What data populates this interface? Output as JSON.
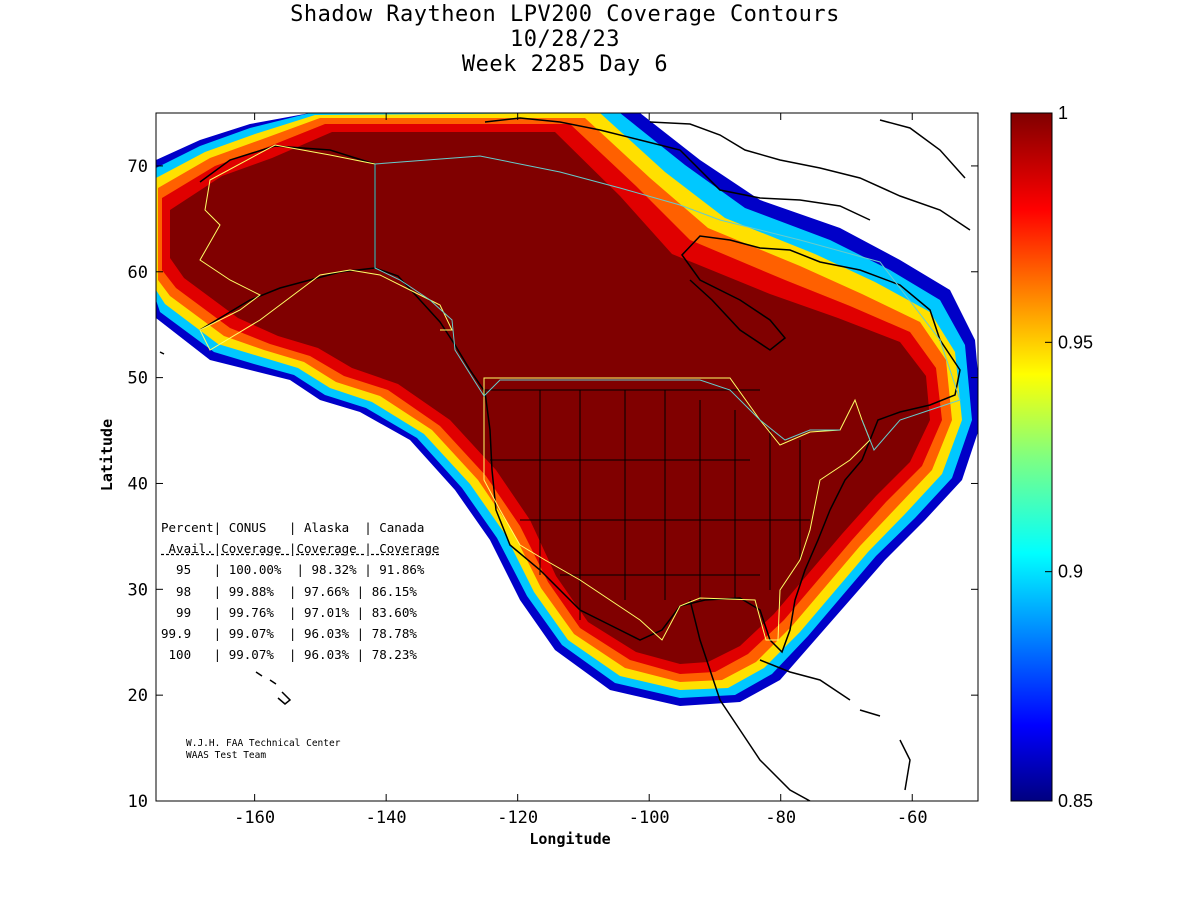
{
  "title": {
    "line1": "Shadow Raytheon LPV200 Coverage Contours",
    "line2": "10/28/23",
    "line3": "Week 2285 Day 6"
  },
  "map": {
    "xlabel": "Longitude",
    "ylabel": "Latitude",
    "xlim": [
      -175,
      -50
    ],
    "ylim": [
      10,
      75
    ],
    "xticks": [
      -160,
      -140,
      -120,
      -100,
      -80,
      -60
    ],
    "yticks": [
      10,
      20,
      30,
      40,
      50,
      60,
      70
    ],
    "xtick_labels": [
      "-160",
      "-140",
      "-120",
      "-100",
      "-80",
      "-60"
    ],
    "ytick_labels": [
      "10",
      "20",
      "30",
      "40",
      "50",
      "60",
      "70"
    ],
    "grid": false
  },
  "colorbar": {
    "min": 0.85,
    "max": 1,
    "tick_values": [
      1,
      0.95,
      0.9,
      0.85
    ],
    "tick_labels": [
      "1",
      "0.95",
      "0.9",
      "0.85"
    ],
    "colormap": "jet"
  },
  "coverage_table": {
    "header1": "Percent| CONUS   | Alaska  | Canada",
    "header2": " Avail.|Coverage |Coverage | Coverage",
    "columns": [
      "Percent Avail.",
      "CONUS Coverage",
      "Alaska Coverage",
      "Canada Coverage"
    ],
    "rows": [
      {
        "percent": "95",
        "conus": "100.00%",
        "alaska": "98.32%",
        "canada": "91.86%",
        "text": "  95   | 100.00%  | 98.32% | 91.86%"
      },
      {
        "percent": "98",
        "conus": "99.88%",
        "alaska": "97.66%",
        "canada": "86.15%",
        "text": "  98   | 99.88%  | 97.66% | 86.15%"
      },
      {
        "percent": "99",
        "conus": "99.76%",
        "alaska": "97.01%",
        "canada": "83.60%",
        "text": "  99   | 99.76%  | 97.01% | 83.60%"
      },
      {
        "percent": "99.9",
        "conus": "99.07%",
        "alaska": "96.03%",
        "canada": "78.78%",
        "text": "99.9   | 99.07%  | 96.03% | 78.78%"
      },
      {
        "percent": "100",
        "conus": "99.07%",
        "alaska": "96.03%",
        "canada": "78.23%",
        "text": " 100   | 99.07%  | 96.03% | 78.23%"
      }
    ]
  },
  "credit": {
    "line1": "W.J.H. FAA Technical Center",
    "line2": "WAAS Test Team"
  },
  "colors": {
    "max_coverage": "#800000",
    "boundary_us_canada": "#ffff66",
    "boundary_canada": "#66cccc",
    "coastline": "#000000"
  }
}
